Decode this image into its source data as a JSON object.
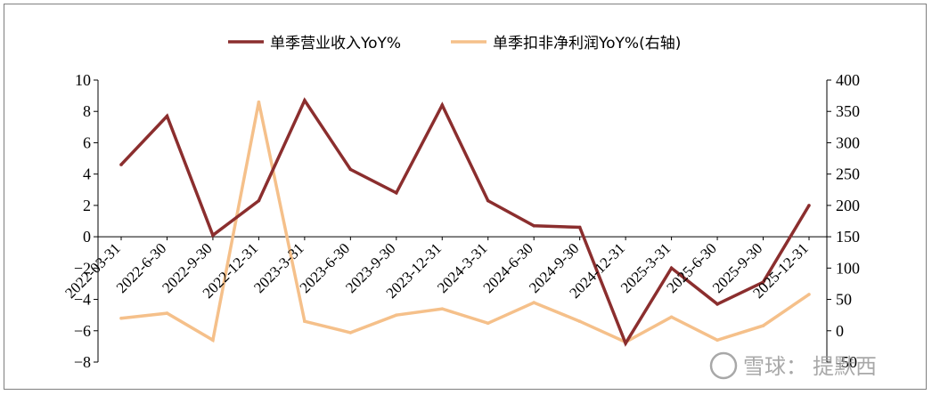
{
  "chart_data": {
    "type": "line",
    "categories": [
      "2022-03-31",
      "2022-6-30",
      "2022-9-30",
      "2022-12-31",
      "2023-3-31",
      "2023-6-30",
      "2023-9-30",
      "2023-12-31",
      "2024-3-31",
      "2024-6-30",
      "2024-9-30",
      "2024-12-31",
      "2025-3-31",
      "2025-6-30",
      "2025-9-30",
      "2025-12-31"
    ],
    "series": [
      {
        "name": "单季营业收入YoY%",
        "axis": "left",
        "color": "#8b2e2e",
        "values": [
          4.6,
          7.7,
          0.1,
          2.3,
          8.7,
          4.3,
          2.8,
          8.4,
          2.3,
          0.7,
          0.6,
          -6.8,
          -2.0,
          -4.3,
          -2.9,
          2.0
        ]
      },
      {
        "name": "单季扣非净利润YoY%(右轴)",
        "axis": "right",
        "color": "#f5c08a",
        "values": [
          20,
          28,
          -15,
          365,
          15,
          -3,
          25,
          35,
          12,
          45,
          15,
          -18,
          22,
          -15,
          8,
          58
        ]
      }
    ],
    "yleft": {
      "ylim": [
        -8,
        10
      ],
      "ticks": [
        "10",
        "8",
        "6",
        "4",
        "2",
        "0",
        "−2",
        "−4",
        "−6",
        "−8"
      ]
    },
    "yright": {
      "ylim": [
        -50,
        400
      ],
      "ticks": [
        "400",
        "350",
        "300",
        "250",
        "200",
        "150",
        "100",
        "50",
        "0",
        "-50"
      ]
    },
    "legend_position": "top",
    "grid": false
  },
  "watermark": {
    "brand": "雪球：",
    "author": "提默西"
  }
}
